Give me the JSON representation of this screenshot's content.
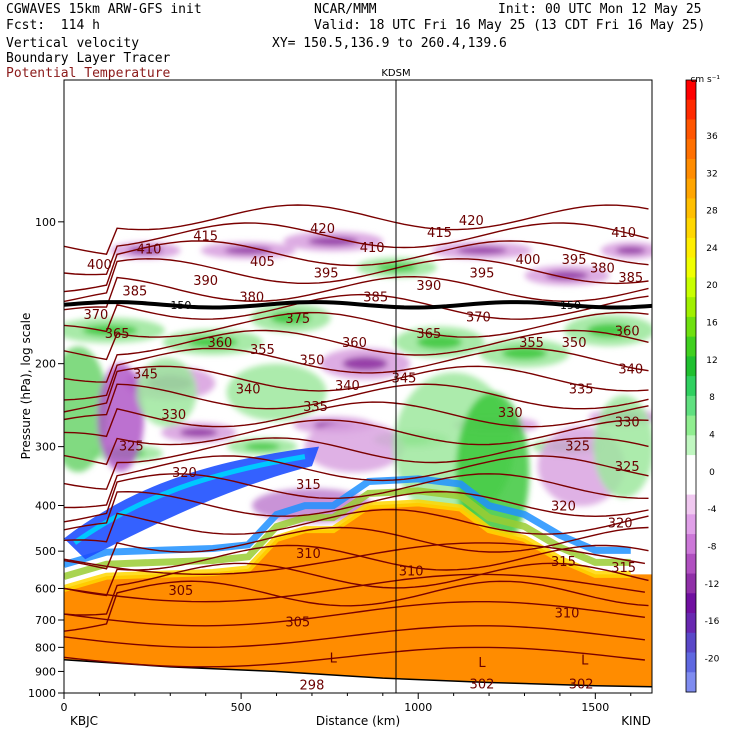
{
  "header": {
    "title_left": "CGWAVES 15km ARW-GFS init",
    "center": "NCAR/MMM",
    "init": "Init: 00 UTC Mon 12 May 25",
    "fcst": "Fcst:  114 h",
    "valid": "Valid: 18 UTC Fri 16 May 25 (13 CDT Fri 16 May 25)",
    "field1": "Vertical velocity",
    "field2": "Boundary Layer Tracer",
    "field3": "Potential Temperature",
    "xy": "XY= 150.5,136.9 to 260.4,139.6",
    "station_mid": "KDSM",
    "station_left": "KBJC",
    "station_right": "KIND",
    "colors": {
      "field3": "#8b1a1a",
      "theta_contour": "#7a0000"
    }
  },
  "chart_data": {
    "type": "contour",
    "title": "",
    "xlabel": "Distance (km)",
    "ylabel": "Pressure (hPa), log scale",
    "xlim": [
      0,
      1660
    ],
    "ylim": [
      1000,
      50
    ],
    "yscale": "log",
    "x_ticks": [
      "0",
      "500",
      "1000",
      "1500"
    ],
    "y_ticks": [
      "100",
      "200",
      "300",
      "400",
      "500",
      "600",
      "700",
      "800",
      "900",
      "1000"
    ],
    "tropopause_label": "150",
    "theta_contours": [
      {
        "value": "420",
        "x": 730,
        "p": 103
      },
      {
        "value": "420",
        "x": 1150,
        "p": 99
      },
      {
        "value": "415",
        "x": 400,
        "p": 107
      },
      {
        "value": "415",
        "x": 1060,
        "p": 105
      },
      {
        "value": "410",
        "x": 240,
        "p": 114
      },
      {
        "value": "410",
        "x": 870,
        "p": 113
      },
      {
        "value": "410",
        "x": 1580,
        "p": 105
      },
      {
        "value": "405",
        "x": 560,
        "p": 121
      },
      {
        "value": "400",
        "x": 100,
        "p": 123
      },
      {
        "value": "400",
        "x": 1310,
        "p": 120
      },
      {
        "value": "395",
        "x": 740,
        "p": 128
      },
      {
        "value": "395",
        "x": 1180,
        "p": 128
      },
      {
        "value": "395",
        "x": 1440,
        "p": 120
      },
      {
        "value": "390",
        "x": 400,
        "p": 133
      },
      {
        "value": "390",
        "x": 1030,
        "p": 136
      },
      {
        "value": "385",
        "x": 200,
        "p": 140
      },
      {
        "value": "385",
        "x": 880,
        "p": 144
      },
      {
        "value": "385",
        "x": 1600,
        "p": 131
      },
      {
        "value": "380",
        "x": 530,
        "p": 144
      },
      {
        "value": "380",
        "x": 1520,
        "p": 125
      },
      {
        "value": "375",
        "x": 660,
        "p": 160
      },
      {
        "value": "370",
        "x": 90,
        "p": 157
      },
      {
        "value": "370",
        "x": 1170,
        "p": 159
      },
      {
        "value": "365",
        "x": 150,
        "p": 172
      },
      {
        "value": "365",
        "x": 1030,
        "p": 172
      },
      {
        "value": "360",
        "x": 440,
        "p": 180
      },
      {
        "value": "360",
        "x": 820,
        "p": 180
      },
      {
        "value": "360",
        "x": 1590,
        "p": 170
      },
      {
        "value": "355",
        "x": 560,
        "p": 186
      },
      {
        "value": "355",
        "x": 1320,
        "p": 180
      },
      {
        "value": "350",
        "x": 700,
        "p": 196
      },
      {
        "value": "350",
        "x": 1440,
        "p": 180
      },
      {
        "value": "345",
        "x": 230,
        "p": 210
      },
      {
        "value": "345",
        "x": 960,
        "p": 214
      },
      {
        "value": "340",
        "x": 520,
        "p": 226
      },
      {
        "value": "340",
        "x": 800,
        "p": 222
      },
      {
        "value": "340",
        "x": 1600,
        "p": 205
      },
      {
        "value": "335",
        "x": 710,
        "p": 246
      },
      {
        "value": "335",
        "x": 1460,
        "p": 226
      },
      {
        "value": "330",
        "x": 310,
        "p": 256
      },
      {
        "value": "330",
        "x": 1260,
        "p": 253
      },
      {
        "value": "330",
        "x": 1590,
        "p": 265
      },
      {
        "value": "325",
        "x": 190,
        "p": 298
      },
      {
        "value": "325",
        "x": 1450,
        "p": 298
      },
      {
        "value": "325",
        "x": 1590,
        "p": 330
      },
      {
        "value": "320",
        "x": 340,
        "p": 340
      },
      {
        "value": "320",
        "x": 1410,
        "p": 400
      },
      {
        "value": "320",
        "x": 1570,
        "p": 435
      },
      {
        "value": "315",
        "x": 690,
        "p": 360
      },
      {
        "value": "315",
        "x": 1410,
        "p": 525
      },
      {
        "value": "315",
        "x": 1580,
        "p": 540
      },
      {
        "value": "310",
        "x": 690,
        "p": 505
      },
      {
        "value": "310",
        "x": 980,
        "p": 550
      },
      {
        "value": "310",
        "x": 1420,
        "p": 675
      },
      {
        "value": "305",
        "x": 330,
        "p": 605
      },
      {
        "value": "305",
        "x": 660,
        "p": 705
      },
      {
        "value": "302",
        "x": 1180,
        "p": 955
      },
      {
        "value": "302",
        "x": 1460,
        "p": 955
      },
      {
        "value": "298",
        "x": 700,
        "p": 960
      },
      {
        "value": "L",
        "x": 760,
        "p": 840
      },
      {
        "value": "L",
        "x": 1180,
        "p": 860
      },
      {
        "value": "L",
        "x": 1470,
        "p": 850
      }
    ],
    "colorbar": {
      "unit": "cm s⁻¹",
      "labels": [
        "36",
        "32",
        "28",
        "24",
        "20",
        "16",
        "12",
        "8",
        "4",
        "0",
        "-4",
        "-8",
        "-12",
        "-16",
        "-20"
      ],
      "colors": [
        "#ff0000",
        "#ff2a00",
        "#ff5500",
        "#ff7000",
        "#ff8c00",
        "#ffa500",
        "#ffbf00",
        "#ffd700",
        "#ffee00",
        "#f0ff00",
        "#c8ff00",
        "#a0f000",
        "#6fe010",
        "#40d020",
        "#20c030",
        "#30d060",
        "#60e080",
        "#90ee90",
        "#c0f7c0",
        "#ffffff",
        "#ffffff",
        "#f0c8f0",
        "#e0a0e8",
        "#cc78d8",
        "#b050c0",
        "#9030a8",
        "#7010a0",
        "#6828b0",
        "#5a48c8",
        "#5f68e0",
        "#7f8cf0"
      ]
    }
  }
}
